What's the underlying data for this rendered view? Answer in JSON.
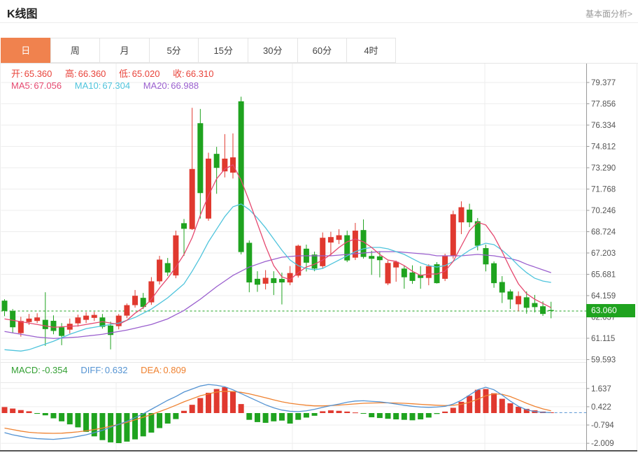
{
  "header": {
    "title": "K线图",
    "analysis_link": "基本面分析>"
  },
  "tabs": {
    "items": [
      "日",
      "周",
      "月",
      "5分",
      "15分",
      "30分",
      "60分",
      "4时"
    ],
    "selected_index": 0
  },
  "ohlc": {
    "items": [
      {
        "label": "开:",
        "value": "65.360"
      },
      {
        "label": "高:",
        "value": "66.360"
      },
      {
        "label": "低:",
        "value": "65.020"
      },
      {
        "label": "收:",
        "value": "66.310"
      }
    ]
  },
  "ma_legend": {
    "items": [
      {
        "label": "MA5:",
        "value": "67.056"
      },
      {
        "label": "MA10:",
        "value": "67.304"
      },
      {
        "label": "MA20:",
        "value": "66.988"
      }
    ]
  },
  "macd_legend": {
    "items": [
      {
        "label": "MACD:",
        "value": "-0.354"
      },
      {
        "label": "DIFF:",
        "value": "0.632"
      },
      {
        "label": "DEA:",
        "value": "0.809"
      }
    ]
  },
  "price_badge": {
    "value": "63.060"
  },
  "chart_data": {
    "type": "candlestick",
    "legend_position": "top-left",
    "grid": true,
    "panels": [
      {
        "name": "price",
        "y_ticks": [
          "79.377",
          "77.856",
          "76.334",
          "74.812",
          "73.290",
          "71.768",
          "70.246",
          "68.724",
          "67.203",
          "65.681",
          "64.159",
          "62.637",
          "61.115",
          "59.593"
        ],
        "ylim": [
          59.0,
          80.0
        ],
        "current_price": 63.06,
        "candles": [
          [
            63.8,
            63.9,
            62.7,
            63.07
          ],
          [
            63.07,
            63.2,
            61.48,
            61.9
          ],
          [
            61.48,
            62.65,
            61.23,
            62.35
          ],
          [
            62.27,
            62.85,
            62.07,
            62.52
          ],
          [
            62.35,
            62.9,
            62.2,
            62.6
          ],
          [
            62.43,
            64.4,
            60.57,
            61.77
          ],
          [
            62.36,
            62.75,
            61.4,
            61.64
          ],
          [
            61.9,
            62.2,
            60.62,
            61.28
          ],
          [
            61.73,
            62.52,
            61.45,
            62.15
          ],
          [
            62.18,
            62.8,
            61.95,
            62.6
          ],
          [
            62.43,
            62.98,
            62.2,
            62.73
          ],
          [
            62.57,
            63.0,
            62.35,
            62.78
          ],
          [
            62.6,
            62.85,
            61.8,
            61.93
          ],
          [
            62.02,
            62.3,
            60.32,
            61.35
          ],
          [
            61.98,
            62.85,
            61.75,
            62.73
          ],
          [
            62.73,
            63.6,
            62.55,
            63.48
          ],
          [
            63.48,
            64.56,
            63.3,
            64.15
          ],
          [
            64.0,
            64.35,
            63.2,
            63.35
          ],
          [
            63.68,
            65.48,
            63.5,
            65.18
          ],
          [
            65.18,
            67.0,
            64.95,
            66.73
          ],
          [
            66.48,
            66.85,
            65.56,
            65.81
          ],
          [
            65.6,
            68.8,
            65.4,
            68.46
          ],
          [
            69.33,
            69.63,
            67.0,
            68.93
          ],
          [
            68.91,
            77.57,
            68.85,
            73.2
          ],
          [
            76.47,
            77.49,
            69.66,
            71.48
          ],
          [
            69.66,
            74.36,
            69.5,
            73.94
          ],
          [
            74.28,
            74.78,
            71.43,
            73.28
          ],
          [
            73.03,
            75.69,
            72.6,
            73.94
          ],
          [
            72.94,
            75.74,
            72.52,
            74.03
          ],
          [
            78.03,
            78.36,
            67.1,
            67.27
          ],
          [
            67.93,
            68.1,
            64.4,
            65.1
          ],
          [
            65.36,
            65.9,
            64.43,
            64.94
          ],
          [
            65.01,
            65.98,
            64.6,
            65.43
          ],
          [
            65.4,
            65.9,
            64.2,
            65.06
          ],
          [
            65.35,
            65.8,
            63.53,
            65.1
          ],
          [
            65.1,
            66.27,
            64.9,
            65.77
          ],
          [
            65.59,
            67.8,
            65.45,
            67.72
          ],
          [
            67.51,
            67.8,
            65.88,
            66.51
          ],
          [
            67.09,
            67.3,
            65.9,
            66.09
          ],
          [
            66.26,
            68.67,
            66.1,
            68.29
          ],
          [
            67.95,
            68.72,
            67.0,
            68.34
          ],
          [
            68.14,
            68.9,
            67.84,
            68.47
          ],
          [
            68.47,
            68.8,
            66.55,
            66.67
          ],
          [
            66.87,
            69.35,
            66.7,
            68.8
          ],
          [
            68.84,
            69.6,
            66.8,
            66.92
          ],
          [
            66.99,
            67.36,
            65.64,
            66.79
          ],
          [
            66.96,
            67.33,
            65.46,
            66.69
          ],
          [
            65.03,
            66.66,
            64.91,
            66.49
          ],
          [
            66.17,
            66.66,
            65.15,
            66.57
          ],
          [
            66.09,
            66.3,
            64.65,
            65.47
          ],
          [
            65.81,
            66.32,
            65.0,
            65.21
          ],
          [
            65.64,
            66.26,
            64.65,
            65.42
          ],
          [
            65.42,
            66.4,
            64.9,
            66.26
          ],
          [
            66.4,
            66.55,
            65.02,
            65.05
          ],
          [
            65.36,
            67.15,
            65.2,
            67.02
          ],
          [
            67.02,
            70.22,
            66.8,
            69.97
          ],
          [
            69.39,
            70.89,
            68.55,
            70.47
          ],
          [
            70.3,
            70.72,
            69.05,
            69.39
          ],
          [
            69.47,
            69.7,
            67.39,
            67.72
          ],
          [
            67.55,
            67.8,
            65.89,
            66.39
          ],
          [
            66.47,
            66.6,
            64.72,
            65.05
          ],
          [
            65.13,
            65.55,
            63.63,
            64.38
          ],
          [
            64.46,
            64.6,
            63.21,
            63.88
          ],
          [
            63.54,
            64.46,
            63.04,
            64.13
          ],
          [
            64.04,
            64.46,
            62.87,
            63.29
          ],
          [
            63.63,
            64.21,
            62.96,
            63.34
          ],
          [
            63.4,
            63.75,
            62.71,
            62.85
          ],
          [
            63.13,
            63.72,
            62.54,
            63.06
          ]
        ],
        "ma5": [
          62.5,
          62.4,
          62.3,
          62.2,
          62.1,
          62.0,
          61.9,
          61.93,
          61.97,
          62.0,
          62.1,
          62.2,
          62.3,
          62.2,
          62.1,
          62.4,
          62.9,
          63.3,
          63.9,
          64.7,
          65.4,
          66.2,
          67.1,
          68.3,
          69.9,
          71.3,
          72.5,
          73.2,
          73.5,
          72.4,
          70.9,
          69.3,
          67.7,
          66.3,
          65.5,
          65.3,
          65.8,
          66.2,
          66.4,
          66.7,
          67.1,
          67.6,
          68.0,
          68.2,
          68.0,
          67.6,
          67.1,
          66.7,
          66.6,
          66.3,
          65.9,
          65.6,
          65.7,
          65.7,
          65.9,
          66.6,
          67.7,
          68.8,
          69.4,
          69.2,
          68.4,
          67.3,
          66.1,
          65.0,
          64.3,
          63.9,
          63.6,
          63.3
        ],
        "ma10": [
          60.3,
          60.25,
          60.2,
          60.3,
          60.5,
          60.7,
          60.9,
          61.15,
          61.4,
          61.6,
          61.8,
          61.9,
          62.0,
          62.1,
          62.2,
          62.4,
          62.6,
          62.9,
          63.2,
          63.6,
          64.0,
          64.5,
          65.0,
          65.9,
          66.9,
          68.0,
          68.9,
          69.8,
          70.5,
          70.7,
          70.3,
          69.7,
          69.0,
          68.2,
          67.4,
          66.7,
          66.3,
          66.1,
          66.0,
          66.1,
          66.4,
          66.7,
          67.0,
          67.3,
          67.5,
          67.6,
          67.6,
          67.5,
          67.3,
          67.1,
          66.8,
          66.5,
          66.3,
          66.2,
          66.3,
          66.6,
          67.0,
          67.4,
          67.7,
          67.9,
          67.8,
          67.4,
          66.9,
          66.3,
          65.8,
          65.4,
          65.2,
          65.1
        ],
        "ma20": [
          61.6,
          61.5,
          61.4,
          61.3,
          61.2,
          61.15,
          61.1,
          61.13,
          61.17,
          61.2,
          61.27,
          61.33,
          61.4,
          61.5,
          61.6,
          61.7,
          61.83,
          61.97,
          62.1,
          62.3,
          62.5,
          62.8,
          63.1,
          63.5,
          63.9,
          64.35,
          64.8,
          65.2,
          65.6,
          65.9,
          66.2,
          66.4,
          66.6,
          66.75,
          66.9,
          66.95,
          67.0,
          67.0,
          67.0,
          67.0,
          67.0,
          67.05,
          67.1,
          67.15,
          67.2,
          67.25,
          67.3,
          67.3,
          67.3,
          67.25,
          67.2,
          67.15,
          67.1,
          67.0,
          67.0,
          67.0,
          67.0,
          67.05,
          67.1,
          67.05,
          67.0,
          66.9,
          66.8,
          66.65,
          66.4,
          66.2,
          66.0,
          65.8
        ]
      },
      {
        "name": "macd",
        "y_ticks": [
          "1.637",
          "0.422",
          "-0.794",
          "-2.009"
        ],
        "bars": [
          0.4,
          0.3,
          0.2,
          0.12,
          -0.05,
          -0.15,
          -0.35,
          -0.55,
          -0.75,
          -0.95,
          -1.25,
          -1.55,
          -1.8,
          -1.95,
          -2.0,
          -1.9,
          -1.75,
          -1.55,
          -1.3,
          -1.0,
          -0.7,
          -0.4,
          0.15,
          0.55,
          1.0,
          1.35,
          1.6,
          1.72,
          1.45,
          0.6,
          -0.45,
          -0.6,
          -0.65,
          -0.55,
          -0.5,
          -0.7,
          -0.45,
          -0.3,
          -0.18,
          0.12,
          0.18,
          0.15,
          0.1,
          0.04,
          -0.04,
          -0.28,
          -0.33,
          -0.38,
          -0.42,
          -0.45,
          -0.48,
          -0.42,
          -0.3,
          -0.06,
          0.1,
          0.35,
          0.75,
          1.15,
          1.55,
          1.6,
          1.32,
          0.95,
          0.65,
          0.42,
          0.28,
          0.18,
          0.1,
          0.05
        ],
        "diff": [
          -1.3,
          -1.45,
          -1.55,
          -1.65,
          -1.7,
          -1.73,
          -1.75,
          -1.7,
          -1.65,
          -1.55,
          -1.45,
          -1.3,
          -1.15,
          -0.95,
          -0.75,
          -0.55,
          -0.3,
          -0.05,
          0.25,
          0.55,
          0.85,
          1.1,
          1.4,
          1.6,
          1.8,
          1.9,
          1.85,
          1.75,
          1.55,
          1.3,
          1.05,
          0.8,
          0.55,
          0.35,
          0.2,
          0.12,
          0.1,
          0.15,
          0.25,
          0.38,
          0.5,
          0.6,
          0.72,
          0.8,
          0.82,
          0.78,
          0.75,
          0.68,
          0.6,
          0.52,
          0.45,
          0.4,
          0.38,
          0.4,
          0.45,
          0.6,
          0.85,
          1.2,
          1.55,
          1.72,
          1.55,
          1.2,
          0.8,
          0.45,
          0.22,
          0.1,
          0.05,
          0.03
        ],
        "dea": [
          -1.0,
          -1.1,
          -1.2,
          -1.28,
          -1.32,
          -1.34,
          -1.35,
          -1.34,
          -1.3,
          -1.25,
          -1.18,
          -1.1,
          -1.0,
          -0.88,
          -0.75,
          -0.62,
          -0.45,
          -0.28,
          -0.1,
          0.1,
          0.3,
          0.52,
          0.75,
          0.95,
          1.15,
          1.28,
          1.4,
          1.45,
          1.43,
          1.38,
          1.28,
          1.15,
          1.02,
          0.88,
          0.75,
          0.65,
          0.58,
          0.52,
          0.48,
          0.48,
          0.5,
          0.53,
          0.57,
          0.61,
          0.65,
          0.67,
          0.68,
          0.68,
          0.67,
          0.65,
          0.62,
          0.58,
          0.55,
          0.52,
          0.5,
          0.52,
          0.58,
          0.72,
          0.92,
          1.15,
          1.28,
          1.25,
          1.1,
          0.88,
          0.65,
          0.45,
          0.28,
          0.15
        ]
      }
    ],
    "colors": {
      "up": "#e0392f",
      "down": "#1fa31f",
      "ma5": "#e5486f",
      "ma10": "#4fc4dc",
      "ma20": "#9a5fce",
      "diff": "#5493d2",
      "dea": "#ef8230",
      "ohlc_text": "#e8433a",
      "macd_text": "#33a033",
      "badge_bg": "#1fa31f",
      "tab_selected_bg": "#f0824e",
      "axis_text": "#555",
      "grid": "#ededed",
      "axis_line": "#999",
      "bottom_line": "#555"
    }
  }
}
